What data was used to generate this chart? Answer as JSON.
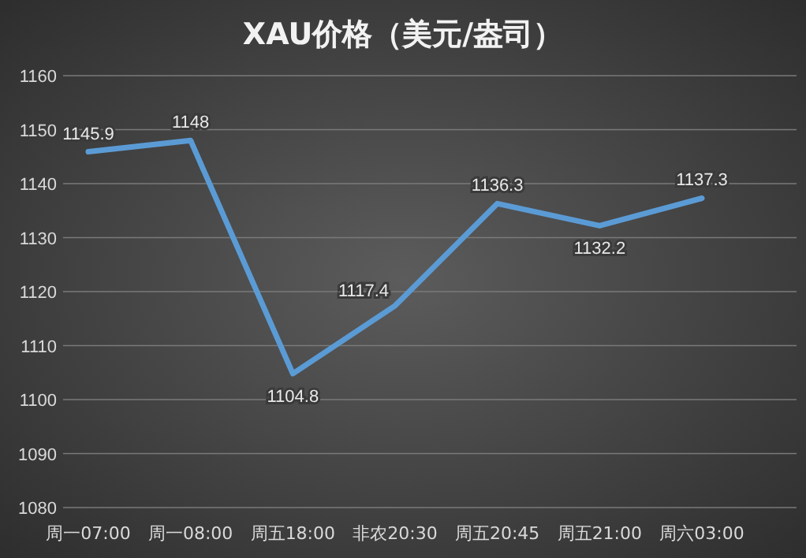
{
  "chart_data": {
    "type": "line",
    "title": "XAU价格（美元/盎司）",
    "categories": [
      "周一07:00",
      "周一08:00",
      "周五18:00",
      "非农20:30",
      "周五20:45",
      "周五21:00",
      "周六03:00"
    ],
    "series": [
      {
        "color": "#5b9bd5",
        "values": [
          1145.9,
          1148,
          1104.8,
          1117.4,
          1136.3,
          1132.2,
          1137.3
        ]
      }
    ],
    "ylim": [
      1080,
      1160
    ],
    "yticks": [
      1080,
      1090,
      1100,
      1110,
      1120,
      1130,
      1140,
      1150,
      1160
    ],
    "grid": "y",
    "data_labels": true,
    "marker": "none",
    "line_style": "solid"
  }
}
